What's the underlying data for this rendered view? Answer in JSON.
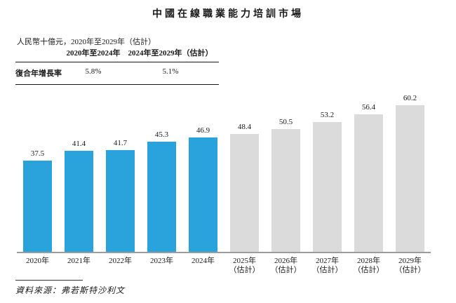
{
  "title": "中國在線職業能力培訓市場",
  "subtitle": "人民幣十億元，2020年至2029年（估計）",
  "cagr_table": {
    "col1_header": "2020年至2024年",
    "col2_header": "2024年至2029年（估計）",
    "row_label": "復合年增長率",
    "col1_value": "5.8%",
    "col2_value": "5.1%"
  },
  "chart_data": {
    "type": "bar",
    "title": "中國在線職業能力培訓市場",
    "unit_label": "人民幣十億元",
    "categories": [
      "2020年",
      "2021年",
      "2022年",
      "2023年",
      "2024年",
      "2025年（估計）",
      "2026年（估計）",
      "2027年（估計）",
      "2028年（估計）",
      "2029年（估計）"
    ],
    "values": [
      37.5,
      41.4,
      41.7,
      45.3,
      46.9,
      48.4,
      50.5,
      53.2,
      56.4,
      60.2
    ],
    "estimate_start_index": 5,
    "bar_labels_shown": true,
    "legend": "none",
    "grid": false,
    "ylim": [
      0,
      66
    ]
  },
  "source": "資料來源：弗若斯特沙利文",
  "colors": {
    "actual_bar": "#2AA2DB",
    "estimate_bar": "#DBDBDB",
    "axis": "#9C9C9C"
  }
}
